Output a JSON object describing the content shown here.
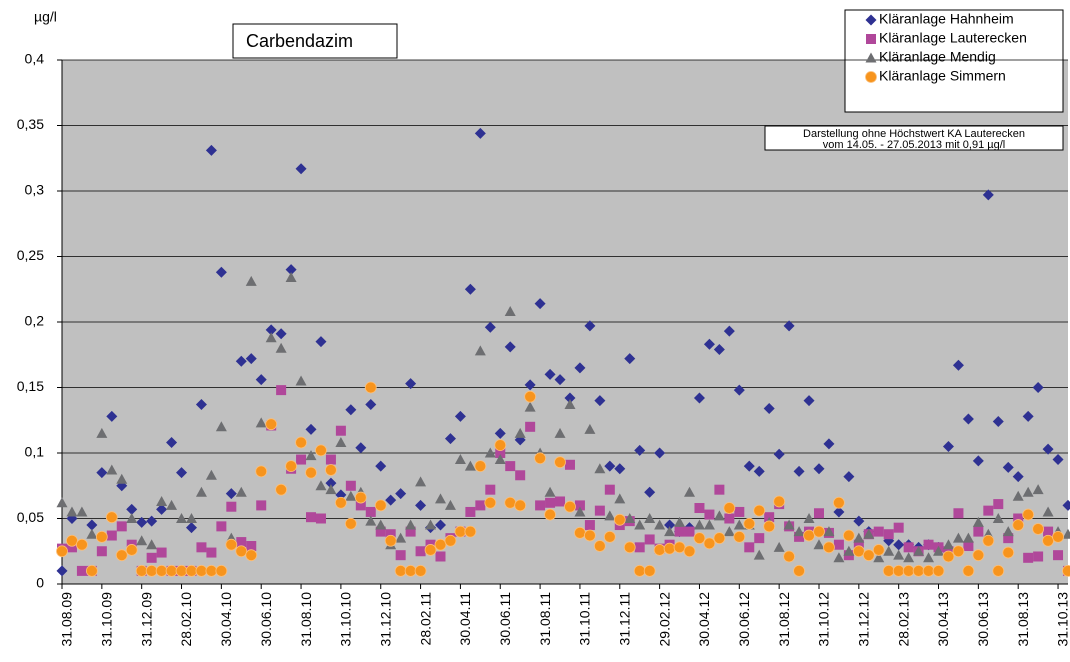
{
  "chart_data": {
    "type": "scatter",
    "title": "Carbendazim",
    "y_label": "µg/l",
    "annotation": [
      "Darstellung ohne Höchstwert KA Lauterecken",
      "vom 14.05. - 27.05.2013 mit 0,91 µg/l"
    ],
    "legend": "upper right",
    "grid": true,
    "xlim": [
      0,
      50.5
    ],
    "ylim": [
      0,
      0.4
    ],
    "yticks": [
      0,
      {
        "value": 0.05,
        "label": "0,05"
      },
      {
        "value": 0.1,
        "label": "0,1"
      },
      {
        "value": 0.15,
        "label": "0,15"
      },
      {
        "value": 0.2,
        "label": "0,2"
      },
      {
        "value": 0.25,
        "label": "0,25"
      },
      {
        "value": 0.3,
        "label": "0,3"
      },
      {
        "value": 0.35,
        "label": "0,35"
      },
      {
        "value": 0.4,
        "label": "0,4"
      }
    ],
    "xticks": [
      {
        "value": 0,
        "label": "31.08.09"
      },
      {
        "value": 2,
        "label": "31.10.09"
      },
      {
        "value": 4,
        "label": "31.12.09"
      },
      {
        "value": 6,
        "label": "28.02.10"
      },
      {
        "value": 8,
        "label": "30.04.10"
      },
      {
        "value": 10,
        "label": "30.06.10"
      },
      {
        "value": 12,
        "label": "31.08.10"
      },
      {
        "value": 14,
        "label": "31.10.10"
      },
      {
        "value": 16,
        "label": "31.12.10"
      },
      {
        "value": 18,
        "label": "28.02.11"
      },
      {
        "value": 20,
        "label": "30.04.11"
      },
      {
        "value": 22,
        "label": "30.06.11"
      },
      {
        "value": 24,
        "label": "31.08.11"
      },
      {
        "value": 26,
        "label": "31.10.11"
      },
      {
        "value": 28,
        "label": "31.12.11"
      },
      {
        "value": 30,
        "label": "29.02.12"
      },
      {
        "value": 32,
        "label": "30.04.12"
      },
      {
        "value": 34,
        "label": "30.06.12"
      },
      {
        "value": 36,
        "label": "31.08.12"
      },
      {
        "value": 38,
        "label": "31.10.12"
      },
      {
        "value": 40,
        "label": "31.12.12"
      },
      {
        "value": 42,
        "label": "28.02.13"
      },
      {
        "value": 44,
        "label": "30.04.13"
      },
      {
        "value": 46,
        "label": "30.06.13"
      },
      {
        "value": 48,
        "label": "31.08.13"
      },
      {
        "value": 50,
        "label": "31.10.13"
      }
    ],
    "x": [
      0,
      0.5,
      1,
      1.5,
      2,
      2.5,
      3,
      3.5,
      4,
      4.5,
      5,
      5.5,
      6,
      6.5,
      7,
      7.5,
      8,
      8.5,
      9,
      9.5,
      10,
      10.5,
      11,
      11.5,
      12,
      12.5,
      13,
      13.5,
      14,
      14.5,
      15,
      15.5,
      16,
      16.5,
      17,
      17.5,
      18,
      18.5,
      19,
      19.5,
      20,
      20.5,
      21,
      21.5,
      22,
      22.5,
      23,
      23.5,
      24,
      24.5,
      25,
      25.5,
      26,
      26.5,
      27,
      27.5,
      28,
      28.5,
      29,
      29.5,
      30,
      30.5,
      31,
      31.5,
      32,
      32.5,
      33,
      33.5,
      34,
      34.5,
      35,
      35.5,
      36,
      36.5,
      37,
      37.5,
      38,
      38.5,
      39,
      39.5,
      40,
      40.5,
      41,
      41.5,
      42,
      42.5,
      43,
      43.5,
      44,
      44.5,
      45,
      45.5,
      46,
      46.5,
      47,
      47.5,
      48,
      48.5,
      49,
      49.5,
      50,
      50.5
    ],
    "series": [
      {
        "name": "Kläranlage Hahnheim",
        "color": "#2e3192",
        "marker": "diamond",
        "values": [
          0.01,
          0.05,
          0.03,
          0.045,
          0.085,
          0.128,
          0.075,
          0.057,
          0.047,
          0.048,
          0.057,
          0.108,
          0.085,
          0.043,
          0.137,
          0.331,
          0.238,
          0.069,
          0.17,
          0.172,
          0.156,
          0.194,
          0.191,
          0.24,
          0.317,
          0.118,
          0.185,
          0.077,
          0.068,
          0.133,
          0.104,
          0.137,
          0.09,
          0.064,
          0.069,
          0.153,
          0.06,
          0.043,
          0.045,
          0.111,
          0.128,
          0.225,
          0.344,
          0.196,
          0.115,
          0.181,
          0.11,
          0.152,
          0.214,
          0.16,
          0.156,
          0.142,
          0.165,
          0.197,
          0.14,
          0.09,
          0.088,
          0.172,
          0.102,
          0.07,
          0.1,
          0.045,
          0.04,
          0.043,
          0.142,
          0.183,
          0.179,
          0.193,
          0.148,
          0.09,
          0.086,
          0.134,
          0.099,
          0.197,
          0.086,
          0.14,
          0.088,
          0.107,
          0.055,
          0.082,
          0.048,
          0.04,
          0.025,
          0.033,
          0.03,
          0.03,
          0.028,
          0.03,
          0.028,
          0.105,
          0.167,
          0.126,
          0.094,
          0.297,
          0.124,
          0.089,
          0.082,
          0.128,
          0.15,
          0.103,
          0.095,
          0.06
        ]
      },
      {
        "name": "Kläranlage Lauterecken",
        "color": "#b0479a",
        "marker": "square",
        "values": [
          0.027,
          0.028,
          0.01,
          0.01,
          0.025,
          0.037,
          0.044,
          0.03,
          0.01,
          0.02,
          0.024,
          0.01,
          0.01,
          0.01,
          0.028,
          0.024,
          0.044,
          0.059,
          0.032,
          0.029,
          0.06,
          0.121,
          0.148,
          0.088,
          0.095,
          0.051,
          0.05,
          0.095,
          0.117,
          0.075,
          0.06,
          0.055,
          0.04,
          0.038,
          0.022,
          0.04,
          0.025,
          0.03,
          0.021,
          0.035,
          0.04,
          0.055,
          0.06,
          0.072,
          0.1,
          0.09,
          0.083,
          0.12,
          0.06,
          0.062,
          0.063,
          0.091,
          0.06,
          0.045,
          0.056,
          0.072,
          0.045,
          0.048,
          0.028,
          0.034,
          0.027,
          0.03,
          0.04,
          0.04,
          0.058,
          0.053,
          0.072,
          0.05,
          0.055,
          0.028,
          0.035,
          0.051,
          0.061,
          0.044,
          0.036,
          0.04,
          0.054,
          0.039,
          0.03,
          0.022,
          0.03,
          0.038,
          0.04,
          0.038,
          0.043,
          0.028,
          0.025,
          0.03,
          0.028,
          0.025,
          0.054,
          0.029,
          0.04,
          0.056,
          0.061,
          0.035,
          0.05,
          0.02,
          0.021,
          0.04,
          0.022,
          0.01
        ]
      },
      {
        "name": "Kläranlage Mendig",
        "color": "#6d6e71",
        "marker": "triangle",
        "values": [
          0.062,
          0.055,
          0.055,
          0.038,
          0.115,
          0.087,
          0.08,
          0.05,
          0.033,
          0.03,
          0.063,
          0.06,
          0.05,
          0.05,
          0.07,
          0.083,
          0.12,
          0.035,
          0.07,
          0.231,
          0.123,
          0.188,
          0.18,
          0.234,
          0.155,
          0.098,
          0.075,
          0.072,
          0.108,
          0.067,
          0.07,
          0.048,
          0.045,
          0.03,
          0.035,
          0.045,
          0.078,
          0.045,
          0.065,
          0.06,
          0.095,
          0.09,
          0.178,
          0.1,
          0.095,
          0.208,
          0.115,
          0.135,
          0.1,
          0.07,
          0.115,
          0.137,
          0.055,
          0.118,
          0.088,
          0.052,
          0.065,
          0.05,
          0.045,
          0.05,
          0.045,
          0.04,
          0.047,
          0.07,
          0.045,
          0.045,
          0.052,
          0.04,
          0.045,
          0.045,
          0.022,
          0.047,
          0.028,
          0.045,
          0.04,
          0.05,
          0.03,
          0.04,
          0.02,
          0.025,
          0.035,
          0.038,
          0.02,
          0.025,
          0.022,
          0.02,
          0.025,
          0.02,
          0.025,
          0.03,
          0.035,
          0.035,
          0.047,
          0.038,
          0.05,
          0.04,
          0.067,
          0.07,
          0.072,
          0.055,
          0.04,
          0.038
        ]
      },
      {
        "name": "Kläranlage Simmern",
        "color": "#f7941d",
        "marker": "circle",
        "values": [
          0.025,
          0.033,
          0.03,
          0.01,
          0.036,
          0.051,
          0.022,
          0.026,
          0.01,
          0.01,
          0.01,
          0.01,
          0.01,
          0.01,
          0.01,
          0.01,
          0.01,
          0.03,
          0.025,
          0.022,
          0.086,
          0.122,
          0.072,
          0.09,
          0.108,
          0.085,
          0.102,
          0.087,
          0.062,
          0.046,
          0.066,
          0.15,
          0.06,
          0.033,
          0.01,
          0.01,
          0.01,
          0.026,
          0.03,
          0.033,
          0.04,
          0.04,
          0.09,
          0.062,
          0.106,
          0.062,
          0.06,
          0.143,
          0.096,
          0.053,
          0.093,
          0.059,
          0.039,
          0.037,
          0.029,
          0.036,
          0.049,
          0.028,
          0.01,
          0.01,
          0.026,
          0.027,
          0.028,
          0.025,
          0.035,
          0.031,
          0.035,
          0.058,
          0.036,
          0.046,
          0.056,
          0.044,
          0.063,
          0.021,
          0.01,
          0.037,
          0.04,
          0.028,
          0.062,
          0.037,
          0.025,
          0.022,
          0.026,
          0.01,
          0.01,
          0.01,
          0.01,
          0.01,
          0.01,
          0.021,
          0.025,
          0.01,
          0.022,
          0.033,
          0.01,
          0.024,
          0.045,
          0.053,
          0.042,
          0.033,
          0.036,
          0.01
        ]
      }
    ]
  }
}
